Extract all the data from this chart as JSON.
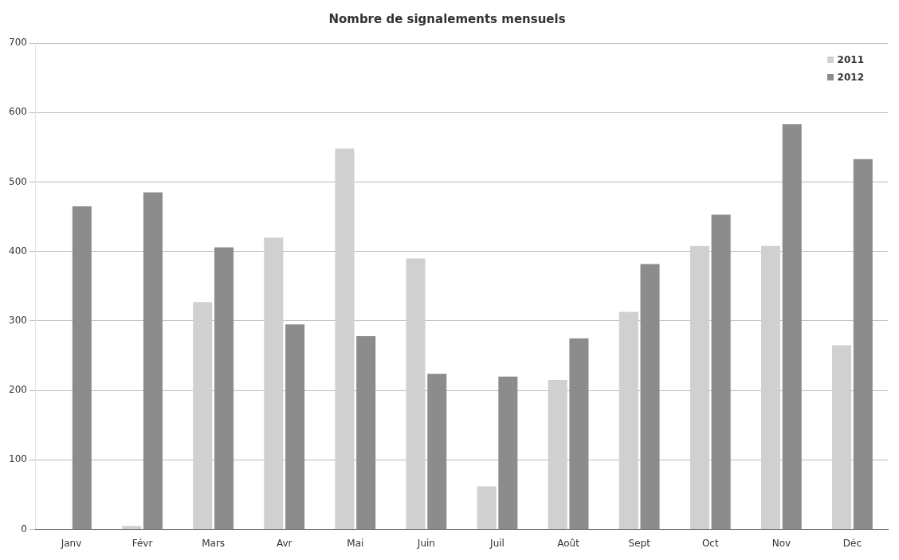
{
  "chart_data": {
    "type": "bar",
    "title": "Nombre de signalements mensuels",
    "categories": [
      "Janv",
      "Févr",
      "Mars",
      "Avr",
      "Mai",
      "Juin",
      "Juil",
      "Août",
      "Sept",
      "Oct",
      "Nov",
      "Déc"
    ],
    "series": [
      {
        "name": "2011",
        "color": "#d0d0d0",
        "values": [
          null,
          5,
          327,
          420,
          548,
          390,
          62,
          215,
          313,
          408,
          408,
          265
        ]
      },
      {
        "name": "2012",
        "color": "#8c8c8c",
        "values": [
          465,
          485,
          406,
          295,
          278,
          224,
          220,
          275,
          382,
          453,
          583,
          533
        ]
      }
    ],
    "ylim": [
      0,
      700
    ],
    "yticks": [
      0,
      100,
      200,
      300,
      400,
      500,
      600,
      700
    ],
    "grid": "y",
    "legend": "top right"
  }
}
